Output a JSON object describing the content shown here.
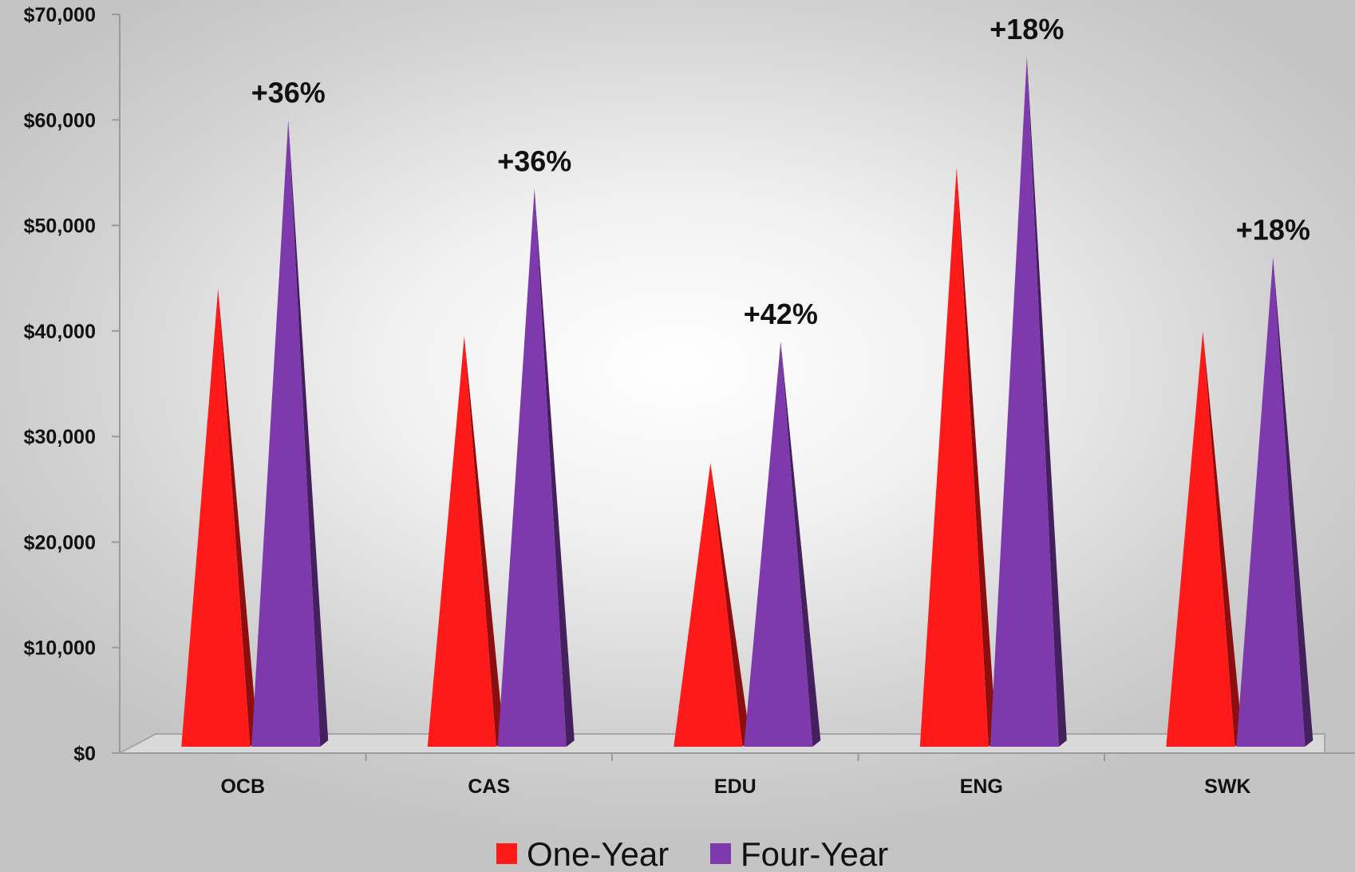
{
  "chart_data": {
    "type": "bar",
    "categories": [
      "OCB",
      "CAS",
      "EDU",
      "ENG",
      "SWK"
    ],
    "series": [
      {
        "name": "One-Year",
        "color": "#ff1a1a",
        "values": [
          44000,
          39500,
          27500,
          55500,
          40000
        ]
      },
      {
        "name": "Four-Year",
        "color": "#7e3aad",
        "values": [
          60000,
          53500,
          39000,
          66000,
          47000
        ]
      }
    ],
    "labels": [
      "+36%",
      "+36%",
      "+42%",
      "+18%",
      "+18%"
    ],
    "yticks": [
      "$0",
      "$10,000",
      "$20,000",
      "$30,000",
      "$40,000",
      "$50,000",
      "$60,000",
      "$70,000"
    ],
    "ylim": [
      0,
      70000
    ],
    "grid": false,
    "legend": "bottom",
    "shape": "pyramid"
  }
}
